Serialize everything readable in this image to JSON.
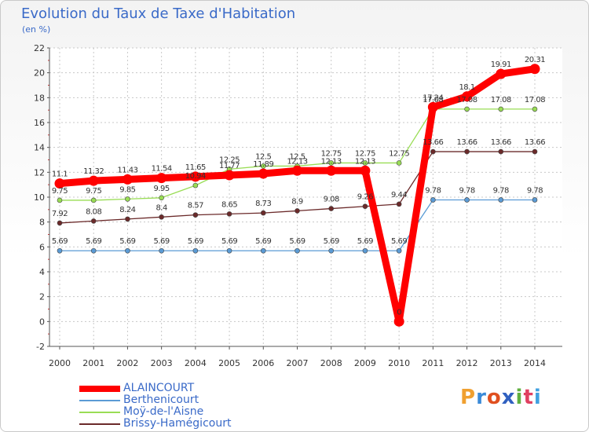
{
  "header": {
    "title": "Evolution du Taux de Taxe d'Habitation",
    "unit": "(en %)"
  },
  "logo": {
    "text": "Proxiti",
    "letters": [
      "P",
      "r",
      "o",
      "x",
      "i",
      "t",
      "i"
    ],
    "colors": [
      "#f0a030",
      "#3a8ad8",
      "#e05020",
      "#3060c0",
      "#60b040",
      "#e04060",
      "#40a0e0"
    ]
  },
  "chart_data": {
    "type": "line",
    "title": "Evolution du Taux de Taxe d'Habitation",
    "ylabel": "(en %)",
    "xlabel": "",
    "ylim": [
      -2,
      22
    ],
    "yticks": [
      "-2",
      "0",
      "2",
      "4",
      "6",
      "8",
      "10",
      "12",
      "14",
      "16",
      "18",
      "20",
      "22"
    ],
    "categories": [
      "2000",
      "2001",
      "2002",
      "2003",
      "2004",
      "2005",
      "2006",
      "2007",
      "2008",
      "2009",
      "2010",
      "2011",
      "2012",
      "2013",
      "2014"
    ],
    "series": [
      {
        "name": "ALAINCOURT",
        "color": "#ff0000",
        "values": [
          11.1,
          11.32,
          11.43,
          11.54,
          11.65,
          11.77,
          11.89,
          12.13,
          12.13,
          12.13,
          0,
          17.24,
          18.1,
          19.91,
          20.31
        ],
        "labels": [
          "11.1",
          "11.32",
          "11.43",
          "11.54",
          "11.65",
          "11.77",
          "11.89",
          "12.13",
          "12.13",
          "12.13",
          "0",
          "17.24",
          "18.1",
          "19.91",
          "20.31"
        ]
      },
      {
        "name": "Berthenicourt",
        "color": "#5b9bd5",
        "values": [
          5.69,
          5.69,
          5.69,
          5.69,
          5.69,
          5.69,
          5.69,
          5.69,
          5.69,
          5.69,
          5.69,
          9.78,
          9.78,
          9.78,
          9.78
        ],
        "labels": [
          "5.69",
          "5.69",
          "5.69",
          "5.69",
          "5.69",
          "5.69",
          "5.69",
          "5.69",
          "5.69",
          "5.69",
          "5.69",
          "9.78",
          "9.78",
          "9.78",
          "9.78"
        ]
      },
      {
        "name": "Moÿ-de-l'Aisne",
        "color": "#99dd55",
        "values": [
          9.75,
          9.75,
          9.85,
          9.95,
          10.94,
          12.25,
          12.5,
          12.5,
          12.75,
          12.75,
          12.75,
          17.08,
          17.08,
          17.08,
          17.08
        ],
        "labels": [
          "9.75",
          "9.75",
          "9.85",
          "9.95",
          "10.94",
          "12.25",
          "12.5",
          "12.5",
          "12.75",
          "12.75",
          "12.75",
          "17.08",
          "17.08",
          "17.08",
          "17.08"
        ]
      },
      {
        "name": "Brissy-Hamégicourt",
        "color": "#6b2a2a",
        "values": [
          7.92,
          8.08,
          8.24,
          8.4,
          8.57,
          8.65,
          8.73,
          8.9,
          9.08,
          9.26,
          9.44,
          13.66,
          13.66,
          13.66,
          13.66
        ],
        "labels": [
          "7.92",
          "8.08",
          "8.24",
          "8.4",
          "8.57",
          "8.65",
          "8.73",
          "8.9",
          "9.08",
          "9.26",
          "9.44",
          "13.66",
          "13.66",
          "13.66",
          "13.66"
        ]
      }
    ]
  }
}
